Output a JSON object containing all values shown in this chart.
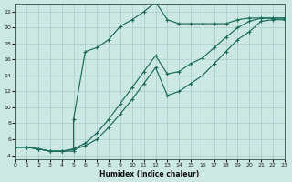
{
  "xlabel": "Humidex (Indice chaleur)",
  "bg_color": "#cce8e2",
  "grid_color": "#aaccc8",
  "line_color": "#1a6b5a",
  "xlim": [
    0,
    23
  ],
  "ylim": [
    3.5,
    23
  ],
  "xticks": [
    0,
    1,
    2,
    3,
    4,
    5,
    6,
    7,
    8,
    9,
    10,
    11,
    12,
    13,
    14,
    15,
    16,
    17,
    18,
    19,
    20,
    21,
    22,
    23
  ],
  "yticks": [
    4,
    6,
    8,
    10,
    12,
    14,
    16,
    18,
    20,
    22
  ],
  "curve1_x": [
    0,
    1,
    2,
    3,
    4,
    5,
    5,
    6,
    7,
    8,
    9,
    10,
    11,
    12,
    13,
    14,
    15,
    16,
    17,
    18,
    19,
    20,
    21,
    22,
    23
  ],
  "curve1_y": [
    5.0,
    5.0,
    4.8,
    4.5,
    4.5,
    4.5,
    8.5,
    17.0,
    17.5,
    18.5,
    20.2,
    21.0,
    22.0,
    23.2,
    21.0,
    20.5,
    20.5,
    20.5,
    20.5,
    20.5,
    21.0,
    21.2,
    21.2,
    21.2,
    21.2
  ],
  "curve2_x": [
    0,
    1,
    2,
    3,
    4,
    5,
    6,
    7,
    8,
    9,
    10,
    11,
    12,
    13,
    14,
    15,
    16,
    17,
    18,
    19,
    20,
    21,
    22,
    23
  ],
  "curve2_y": [
    5.0,
    5.0,
    4.8,
    4.5,
    4.5,
    4.8,
    5.5,
    6.8,
    8.5,
    10.5,
    12.5,
    14.5,
    16.5,
    14.2,
    14.5,
    15.5,
    16.2,
    17.5,
    18.8,
    20.0,
    20.8,
    21.2,
    21.2,
    21.2
  ],
  "curve3_x": [
    0,
    1,
    2,
    3,
    4,
    5,
    6,
    7,
    8,
    9,
    10,
    11,
    12,
    13,
    14,
    15,
    16,
    17,
    18,
    19,
    20,
    21,
    22,
    23
  ],
  "curve3_y": [
    5.0,
    5.0,
    4.8,
    4.5,
    4.5,
    4.7,
    5.2,
    6.0,
    7.5,
    9.2,
    11.0,
    13.0,
    15.0,
    11.5,
    12.0,
    13.0,
    14.0,
    15.5,
    17.0,
    18.5,
    19.5,
    20.8,
    21.0,
    21.0
  ]
}
